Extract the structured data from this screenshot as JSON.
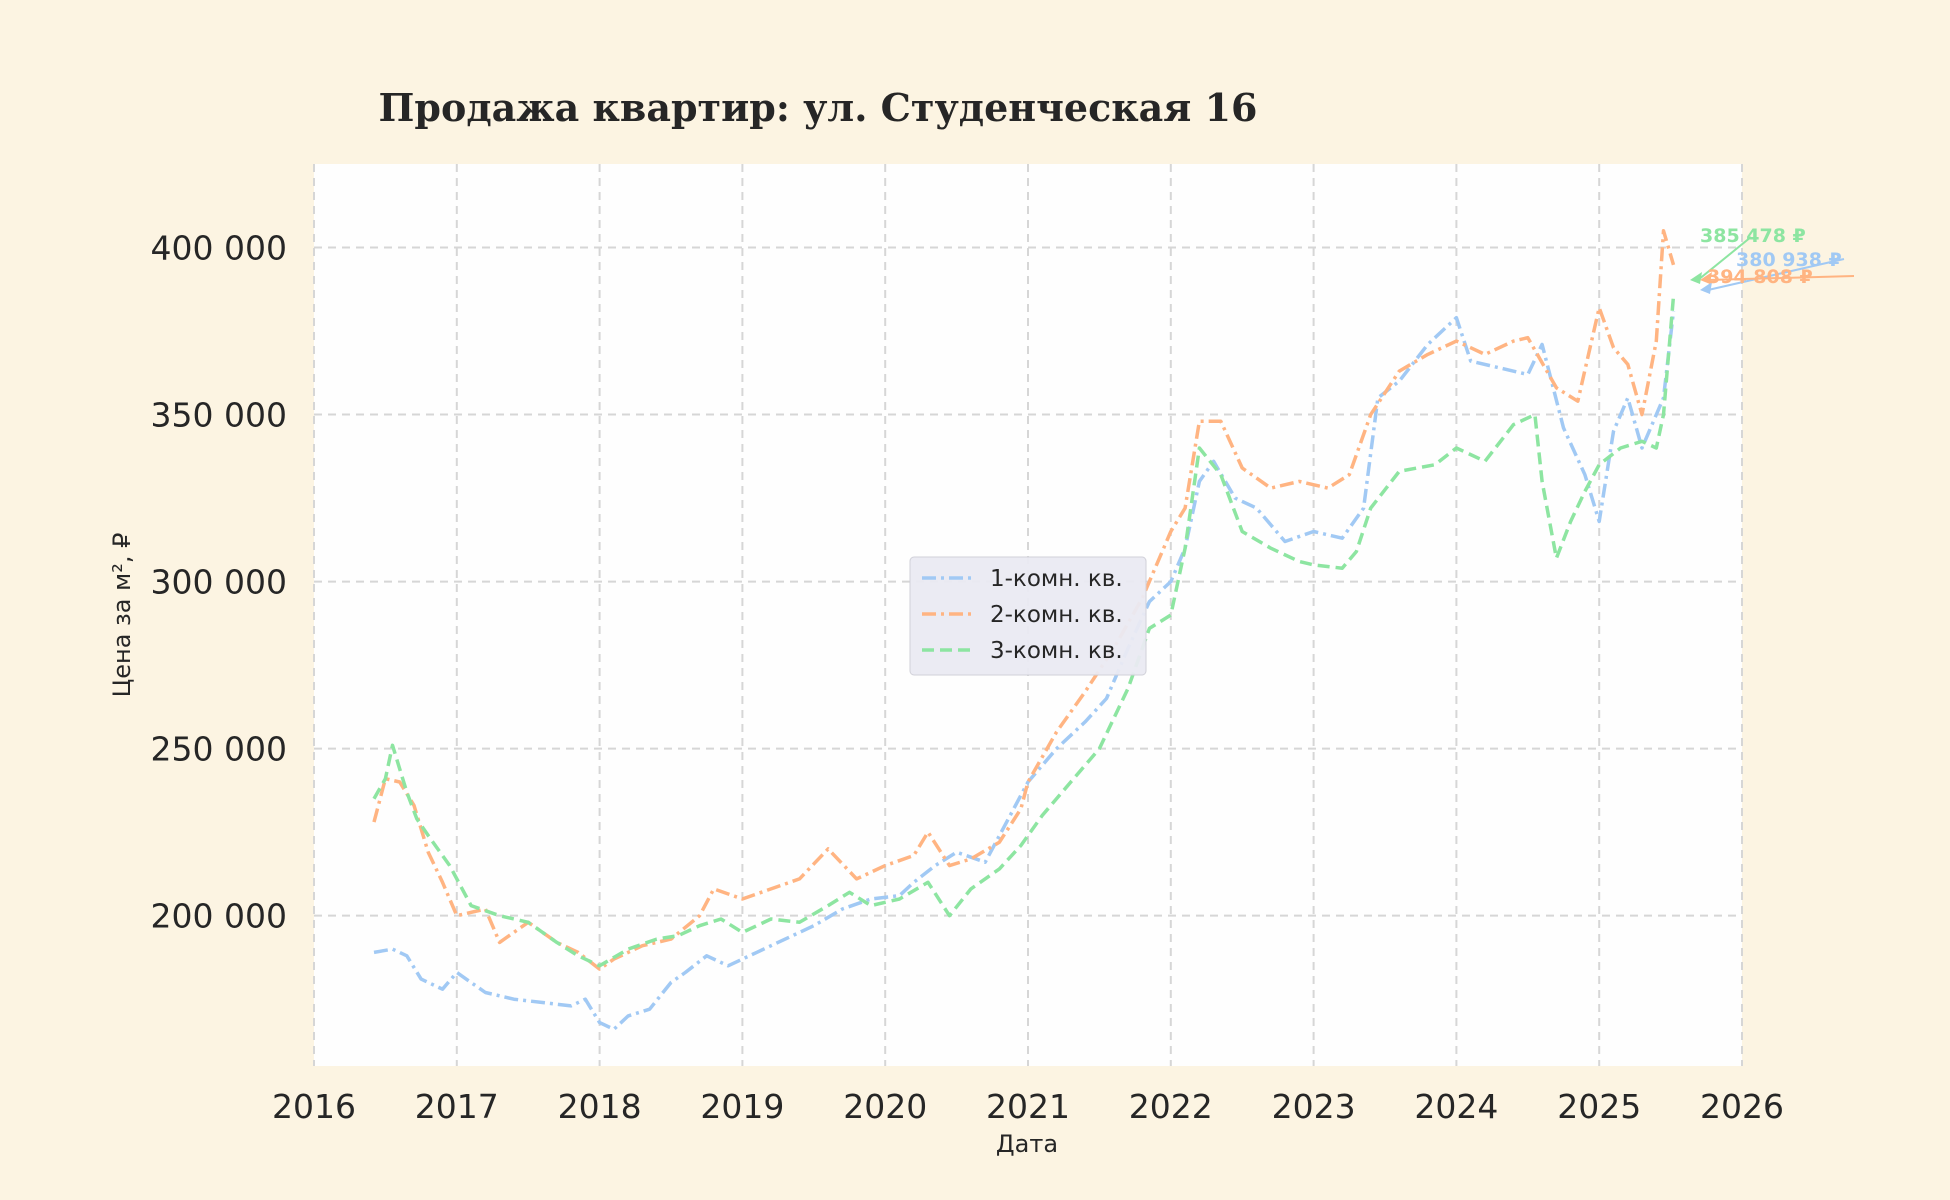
{
  "chart_data": {
    "type": "line",
    "title": "Продажа квартир: ул. Студенческая 16",
    "xlabel": "Дата",
    "ylabel": "Цена за м², ₽",
    "x_ticks": [
      "2016",
      "2017",
      "2018",
      "2019",
      "2020",
      "2021",
      "2022",
      "2023",
      "2024",
      "2025",
      "2026"
    ],
    "y_ticks": [
      "200 000",
      "250 000",
      "300 000",
      "350 000",
      "400 000"
    ],
    "xlim": [
      2016.0,
      2026.0
    ],
    "ylim": [
      155000,
      425000
    ],
    "grid": true,
    "legend_position": "center",
    "series": [
      {
        "name": "1-комн. кв.",
        "color": "#a1c9f4",
        "dash": "dashdot",
        "end_label": "380 938 ₽",
        "x": [
          2016.42,
          2016.55,
          2016.65,
          2016.75,
          2016.9,
          2017.0,
          2017.2,
          2017.4,
          2017.6,
          2017.8,
          2017.9,
          2018.0,
          2018.1,
          2018.2,
          2018.35,
          2018.5,
          2018.6,
          2018.75,
          2018.9,
          2019.1,
          2019.3,
          2019.5,
          2019.7,
          2019.9,
          2020.1,
          2020.2,
          2020.35,
          2020.5,
          2020.7,
          2020.9,
          2021.0,
          2021.2,
          2021.4,
          2021.55,
          2021.7,
          2021.85,
          2022.0,
          2022.1,
          2022.2,
          2022.3,
          2022.45,
          2022.6,
          2022.8,
          2023.0,
          2023.2,
          2023.35,
          2023.45,
          2023.6,
          2023.8,
          2024.0,
          2024.1,
          2024.3,
          2024.5,
          2024.6,
          2024.75,
          2024.9,
          2025.0,
          2025.1,
          2025.2,
          2025.3,
          2025.45,
          2025.52
        ],
        "values": [
          189000,
          190000,
          188000,
          181000,
          178000,
          183000,
          177000,
          175000,
          174000,
          173000,
          175000,
          168000,
          166000,
          170000,
          172000,
          180000,
          183000,
          188000,
          185000,
          189000,
          193000,
          197000,
          202000,
          205000,
          206000,
          210000,
          215000,
          219000,
          216000,
          232000,
          240000,
          250000,
          258000,
          265000,
          280000,
          294000,
          300000,
          310000,
          330000,
          336000,
          325000,
          322000,
          312000,
          315000,
          313000,
          322000,
          355000,
          360000,
          371000,
          379000,
          366000,
          364000,
          362000,
          371000,
          346000,
          332000,
          318000,
          345000,
          355000,
          340000,
          355000,
          380938
        ]
      },
      {
        "name": "2-комн. кв.",
        "color": "#ffb482",
        "dash": "dashdot",
        "end_label": "394 808 ₽",
        "x": [
          2016.42,
          2016.5,
          2016.6,
          2016.7,
          2016.8,
          2016.9,
          2017.0,
          2017.2,
          2017.3,
          2017.5,
          2017.7,
          2017.85,
          2018.0,
          2018.1,
          2018.3,
          2018.5,
          2018.7,
          2018.8,
          2019.0,
          2019.2,
          2019.4,
          2019.6,
          2019.8,
          2020.0,
          2020.2,
          2020.3,
          2020.45,
          2020.6,
          2020.8,
          2020.95,
          2021.0,
          2021.2,
          2021.4,
          2021.6,
          2021.8,
          2022.0,
          2022.1,
          2022.2,
          2022.35,
          2022.5,
          2022.7,
          2022.9,
          2023.1,
          2023.25,
          2023.4,
          2023.6,
          2023.8,
          2024.0,
          2024.2,
          2024.4,
          2024.5,
          2024.7,
          2024.85,
          2025.0,
          2025.1,
          2025.2,
          2025.3,
          2025.4,
          2025.45,
          2025.52
        ],
        "values": [
          228000,
          241000,
          240000,
          233000,
          219000,
          210000,
          200000,
          202000,
          192000,
          198000,
          192000,
          189000,
          184000,
          187000,
          191000,
          193000,
          200000,
          208000,
          205000,
          208000,
          211000,
          220000,
          211000,
          215000,
          218000,
          225000,
          215000,
          217000,
          222000,
          232000,
          240000,
          255000,
          267000,
          280000,
          295000,
          315000,
          322000,
          348000,
          348000,
          334000,
          328000,
          330000,
          328000,
          332000,
          350000,
          363000,
          368000,
          372000,
          368000,
          372000,
          373000,
          358000,
          354000,
          382000,
          370000,
          365000,
          350000,
          372000,
          405000,
          394808
        ]
      },
      {
        "name": "3-комн. кв.",
        "color": "#8de5a1",
        "dash": "dashed",
        "end_label": "385 478 ₽",
        "x": [
          2016.42,
          2016.5,
          2016.55,
          2016.65,
          2016.72,
          2016.8,
          2016.95,
          2017.1,
          2017.3,
          2017.5,
          2017.7,
          2017.85,
          2018.0,
          2018.2,
          2018.4,
          2018.55,
          2018.7,
          2018.85,
          2019.0,
          2019.2,
          2019.4,
          2019.6,
          2019.75,
          2019.9,
          2020.1,
          2020.3,
          2020.45,
          2020.6,
          2020.8,
          2020.95,
          2021.1,
          2021.3,
          2021.5,
          2021.7,
          2021.85,
          2022.0,
          2022.1,
          2022.2,
          2022.35,
          2022.5,
          2022.7,
          2022.9,
          2023.0,
          2023.2,
          2023.3,
          2023.4,
          2023.6,
          2023.85,
          2024.0,
          2024.2,
          2024.4,
          2024.55,
          2024.6,
          2024.7,
          2024.8,
          2024.9,
          2025.0,
          2025.15,
          2025.3,
          2025.4,
          2025.45,
          2025.52
        ],
        "values": [
          235000,
          241000,
          251000,
          237000,
          229000,
          224000,
          215000,
          203000,
          200000,
          198000,
          192000,
          188000,
          185000,
          190000,
          193000,
          194000,
          197000,
          199000,
          195000,
          199000,
          198000,
          203000,
          207000,
          203000,
          205000,
          210000,
          200000,
          208000,
          214000,
          221000,
          230000,
          240000,
          250000,
          268000,
          286000,
          290000,
          310000,
          340000,
          332000,
          315000,
          310000,
          306000,
          305000,
          304000,
          309000,
          322000,
          333000,
          335000,
          340000,
          336000,
          347000,
          350000,
          330000,
          307000,
          318000,
          327000,
          335000,
          340000,
          342000,
          340000,
          350000,
          385478
        ]
      }
    ]
  }
}
